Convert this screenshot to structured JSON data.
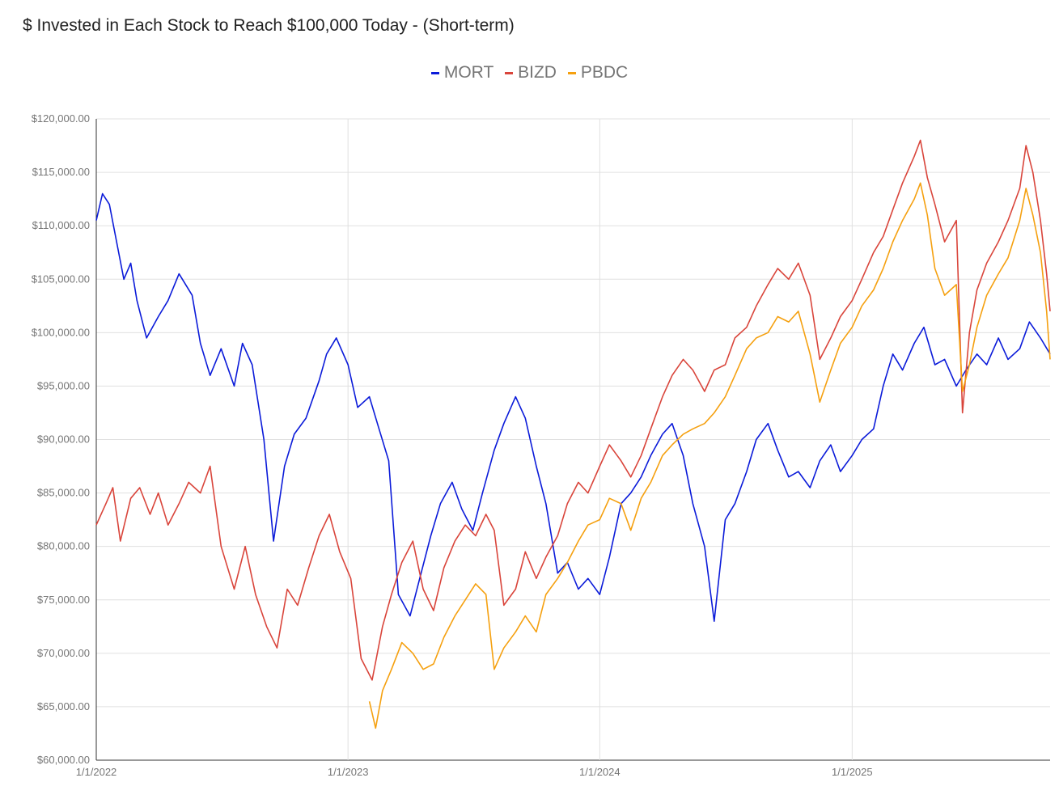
{
  "chart_data": {
    "type": "line",
    "title": "$ Invested in Each Stock to Reach $100,000 Today - (Short-term)",
    "xlabel": "",
    "ylabel": "",
    "ylim": [
      60000,
      120000
    ],
    "y_ticks": [
      "$60,000.00",
      "$65,000.00",
      "$70,000.00",
      "$75,000.00",
      "$80,000.00",
      "$85,000.00",
      "$90,000.00",
      "$95,000.00",
      "$100,000.00",
      "$105,000.00",
      "$110,000.00",
      "$115,000.00",
      "$120,000.00"
    ],
    "x_ticks": [
      "1/1/2022",
      "1/1/2023",
      "1/1/2024",
      "1/1/2025"
    ],
    "xlim": [
      "2022-01-01",
      "2025-10-15"
    ],
    "grid": true,
    "legend_position": "top-center",
    "series": [
      {
        "name": "MORT",
        "color": "#0b1bd9",
        "points": [
          [
            "2022-01-01",
            110500
          ],
          [
            "2022-01-10",
            113000
          ],
          [
            "2022-01-20",
            112000
          ],
          [
            "2022-02-01",
            108000
          ],
          [
            "2022-02-10",
            105000
          ],
          [
            "2022-02-20",
            106500
          ],
          [
            "2022-03-01",
            103000
          ],
          [
            "2022-03-15",
            99500
          ],
          [
            "2022-04-01",
            101500
          ],
          [
            "2022-04-15",
            103000
          ],
          [
            "2022-05-01",
            105500
          ],
          [
            "2022-05-20",
            103500
          ],
          [
            "2022-06-01",
            99000
          ],
          [
            "2022-06-15",
            96000
          ],
          [
            "2022-07-01",
            98500
          ],
          [
            "2022-07-20",
            95000
          ],
          [
            "2022-08-01",
            99000
          ],
          [
            "2022-08-15",
            97000
          ],
          [
            "2022-09-01",
            90000
          ],
          [
            "2022-09-15",
            80500
          ],
          [
            "2022-10-01",
            87500
          ],
          [
            "2022-10-15",
            90500
          ],
          [
            "2022-11-01",
            92000
          ],
          [
            "2022-11-20",
            95500
          ],
          [
            "2022-12-01",
            98000
          ],
          [
            "2022-12-15",
            99500
          ],
          [
            "2023-01-01",
            97000
          ],
          [
            "2023-01-15",
            93000
          ],
          [
            "2023-02-01",
            94000
          ],
          [
            "2023-02-15",
            91000
          ],
          [
            "2023-03-01",
            88000
          ],
          [
            "2023-03-15",
            75500
          ],
          [
            "2023-04-01",
            73500
          ],
          [
            "2023-04-15",
            77000
          ],
          [
            "2023-05-01",
            81000
          ],
          [
            "2023-05-15",
            84000
          ],
          [
            "2023-06-01",
            86000
          ],
          [
            "2023-06-15",
            83500
          ],
          [
            "2023-07-01",
            81500
          ],
          [
            "2023-07-15",
            85000
          ],
          [
            "2023-08-01",
            89000
          ],
          [
            "2023-08-15",
            91500
          ],
          [
            "2023-09-01",
            94000
          ],
          [
            "2023-09-15",
            92000
          ],
          [
            "2023-10-01",
            87500
          ],
          [
            "2023-10-15",
            84000
          ],
          [
            "2023-11-01",
            77500
          ],
          [
            "2023-11-15",
            78500
          ],
          [
            "2023-12-01",
            76000
          ],
          [
            "2023-12-15",
            77000
          ],
          [
            "2024-01-01",
            75500
          ],
          [
            "2024-01-15",
            79000
          ],
          [
            "2024-02-01",
            84000
          ],
          [
            "2024-02-15",
            85000
          ],
          [
            "2024-03-01",
            86500
          ],
          [
            "2024-03-15",
            88500
          ],
          [
            "2024-04-01",
            90500
          ],
          [
            "2024-04-15",
            91500
          ],
          [
            "2024-05-01",
            88500
          ],
          [
            "2024-05-15",
            84000
          ],
          [
            "2024-06-01",
            80000
          ],
          [
            "2024-06-15",
            73000
          ],
          [
            "2024-07-01",
            82500
          ],
          [
            "2024-07-15",
            84000
          ],
          [
            "2024-08-01",
            87000
          ],
          [
            "2024-08-15",
            90000
          ],
          [
            "2024-09-01",
            91500
          ],
          [
            "2024-09-15",
            89000
          ],
          [
            "2024-10-01",
            86500
          ],
          [
            "2024-10-15",
            87000
          ],
          [
            "2024-11-01",
            85500
          ],
          [
            "2024-11-15",
            88000
          ],
          [
            "2024-12-01",
            89500
          ],
          [
            "2024-12-15",
            87000
          ],
          [
            "2025-01-01",
            88500
          ],
          [
            "2025-01-15",
            90000
          ],
          [
            "2025-02-01",
            91000
          ],
          [
            "2025-02-15",
            95000
          ],
          [
            "2025-03-01",
            98000
          ],
          [
            "2025-03-15",
            96500
          ],
          [
            "2025-04-01",
            99000
          ],
          [
            "2025-04-15",
            100500
          ],
          [
            "2025-05-01",
            97000
          ],
          [
            "2025-05-15",
            97500
          ],
          [
            "2025-06-01",
            95000
          ],
          [
            "2025-06-15",
            96500
          ],
          [
            "2025-07-01",
            98000
          ],
          [
            "2025-07-15",
            97000
          ],
          [
            "2025-08-01",
            99500
          ],
          [
            "2025-08-15",
            97500
          ],
          [
            "2025-09-01",
            98500
          ],
          [
            "2025-09-15",
            101000
          ],
          [
            "2025-10-01",
            99500
          ],
          [
            "2025-10-15",
            98000
          ]
        ]
      },
      {
        "name": "BIZD",
        "color": "#d9453b",
        "points": [
          [
            "2022-01-01",
            82000
          ],
          [
            "2022-01-15",
            84000
          ],
          [
            "2022-01-25",
            85500
          ],
          [
            "2022-02-05",
            80500
          ],
          [
            "2022-02-20",
            84500
          ],
          [
            "2022-03-05",
            85500
          ],
          [
            "2022-03-20",
            83000
          ],
          [
            "2022-04-01",
            85000
          ],
          [
            "2022-04-15",
            82000
          ],
          [
            "2022-05-01",
            84000
          ],
          [
            "2022-05-15",
            86000
          ],
          [
            "2022-06-01",
            85000
          ],
          [
            "2022-06-15",
            87500
          ],
          [
            "2022-07-01",
            80000
          ],
          [
            "2022-07-20",
            76000
          ],
          [
            "2022-08-05",
            80000
          ],
          [
            "2022-08-20",
            75500
          ],
          [
            "2022-09-05",
            72500
          ],
          [
            "2022-09-20",
            70500
          ],
          [
            "2022-10-05",
            76000
          ],
          [
            "2022-10-20",
            74500
          ],
          [
            "2022-11-05",
            78000
          ],
          [
            "2022-11-20",
            81000
          ],
          [
            "2022-12-05",
            83000
          ],
          [
            "2022-12-20",
            79500
          ],
          [
            "2023-01-05",
            77000
          ],
          [
            "2023-01-20",
            69500
          ],
          [
            "2023-02-05",
            67500
          ],
          [
            "2023-02-20",
            72500
          ],
          [
            "2023-03-05",
            75500
          ],
          [
            "2023-03-20",
            78500
          ],
          [
            "2023-04-05",
            80500
          ],
          [
            "2023-04-20",
            76000
          ],
          [
            "2023-05-05",
            74000
          ],
          [
            "2023-05-20",
            78000
          ],
          [
            "2023-06-05",
            80500
          ],
          [
            "2023-06-20",
            82000
          ],
          [
            "2023-07-05",
            81000
          ],
          [
            "2023-07-20",
            83000
          ],
          [
            "2023-08-01",
            81500
          ],
          [
            "2023-08-15",
            74500
          ],
          [
            "2023-09-01",
            76000
          ],
          [
            "2023-09-15",
            79500
          ],
          [
            "2023-10-01",
            77000
          ],
          [
            "2023-10-15",
            79000
          ],
          [
            "2023-11-01",
            81000
          ],
          [
            "2023-11-15",
            84000
          ],
          [
            "2023-12-01",
            86000
          ],
          [
            "2023-12-15",
            85000
          ],
          [
            "2024-01-01",
            87500
          ],
          [
            "2024-01-15",
            89500
          ],
          [
            "2024-02-01",
            88000
          ],
          [
            "2024-02-15",
            86500
          ],
          [
            "2024-03-01",
            88500
          ],
          [
            "2024-03-15",
            91000
          ],
          [
            "2024-04-01",
            94000
          ],
          [
            "2024-04-15",
            96000
          ],
          [
            "2024-05-01",
            97500
          ],
          [
            "2024-05-15",
            96500
          ],
          [
            "2024-06-01",
            94500
          ],
          [
            "2024-06-15",
            96500
          ],
          [
            "2024-07-01",
            97000
          ],
          [
            "2024-07-15",
            99500
          ],
          [
            "2024-08-01",
            100500
          ],
          [
            "2024-08-15",
            102500
          ],
          [
            "2024-09-01",
            104500
          ],
          [
            "2024-09-15",
            106000
          ],
          [
            "2024-10-01",
            105000
          ],
          [
            "2024-10-15",
            106500
          ],
          [
            "2024-11-01",
            103500
          ],
          [
            "2024-11-15",
            97500
          ],
          [
            "2024-12-01",
            99500
          ],
          [
            "2024-12-15",
            101500
          ],
          [
            "2025-01-01",
            103000
          ],
          [
            "2025-01-15",
            105000
          ],
          [
            "2025-02-01",
            107500
          ],
          [
            "2025-02-15",
            109000
          ],
          [
            "2025-03-01",
            111500
          ],
          [
            "2025-03-15",
            114000
          ],
          [
            "2025-04-01",
            116500
          ],
          [
            "2025-04-10",
            118000
          ],
          [
            "2025-04-20",
            114500
          ],
          [
            "2025-05-01",
            112000
          ],
          [
            "2025-05-15",
            108500
          ],
          [
            "2025-06-01",
            110500
          ],
          [
            "2025-06-10",
            92500
          ],
          [
            "2025-06-20",
            100000
          ],
          [
            "2025-07-01",
            104000
          ],
          [
            "2025-07-15",
            106500
          ],
          [
            "2025-08-01",
            108500
          ],
          [
            "2025-08-15",
            110500
          ],
          [
            "2025-09-01",
            113500
          ],
          [
            "2025-09-10",
            117500
          ],
          [
            "2025-09-20",
            115000
          ],
          [
            "2025-10-01",
            110500
          ],
          [
            "2025-10-10",
            105500
          ],
          [
            "2025-10-15",
            102000
          ]
        ]
      },
      {
        "name": "PBDC",
        "color": "#f5a00f",
        "points": [
          [
            "2023-02-01",
            65500
          ],
          [
            "2023-02-10",
            63000
          ],
          [
            "2023-02-20",
            66500
          ],
          [
            "2023-03-05",
            68500
          ],
          [
            "2023-03-20",
            71000
          ],
          [
            "2023-04-05",
            70000
          ],
          [
            "2023-04-20",
            68500
          ],
          [
            "2023-05-05",
            69000
          ],
          [
            "2023-05-20",
            71500
          ],
          [
            "2023-06-05",
            73500
          ],
          [
            "2023-06-20",
            75000
          ],
          [
            "2023-07-05",
            76500
          ],
          [
            "2023-07-20",
            75500
          ],
          [
            "2023-08-01",
            68500
          ],
          [
            "2023-08-15",
            70500
          ],
          [
            "2023-09-01",
            72000
          ],
          [
            "2023-09-15",
            73500
          ],
          [
            "2023-10-01",
            72000
          ],
          [
            "2023-10-15",
            75500
          ],
          [
            "2023-11-01",
            77000
          ],
          [
            "2023-11-15",
            78500
          ],
          [
            "2023-12-01",
            80500
          ],
          [
            "2023-12-15",
            82000
          ],
          [
            "2024-01-01",
            82500
          ],
          [
            "2024-01-15",
            84500
          ],
          [
            "2024-02-01",
            84000
          ],
          [
            "2024-02-15",
            81500
          ],
          [
            "2024-03-01",
            84500
          ],
          [
            "2024-03-15",
            86000
          ],
          [
            "2024-04-01",
            88500
          ],
          [
            "2024-04-15",
            89500
          ],
          [
            "2024-05-01",
            90500
          ],
          [
            "2024-05-15",
            91000
          ],
          [
            "2024-06-01",
            91500
          ],
          [
            "2024-06-15",
            92500
          ],
          [
            "2024-07-01",
            94000
          ],
          [
            "2024-07-15",
            96000
          ],
          [
            "2024-08-01",
            98500
          ],
          [
            "2024-08-15",
            99500
          ],
          [
            "2024-09-01",
            100000
          ],
          [
            "2024-09-15",
            101500
          ],
          [
            "2024-10-01",
            101000
          ],
          [
            "2024-10-15",
            102000
          ],
          [
            "2024-11-01",
            98000
          ],
          [
            "2024-11-15",
            93500
          ],
          [
            "2024-12-01",
            96500
          ],
          [
            "2024-12-15",
            99000
          ],
          [
            "2025-01-01",
            100500
          ],
          [
            "2025-01-15",
            102500
          ],
          [
            "2025-02-01",
            104000
          ],
          [
            "2025-02-15",
            106000
          ],
          [
            "2025-03-01",
            108500
          ],
          [
            "2025-03-15",
            110500
          ],
          [
            "2025-04-01",
            112500
          ],
          [
            "2025-04-10",
            114000
          ],
          [
            "2025-04-20",
            111000
          ],
          [
            "2025-05-01",
            106000
          ],
          [
            "2025-05-15",
            103500
          ],
          [
            "2025-06-01",
            104500
          ],
          [
            "2025-06-10",
            94500
          ],
          [
            "2025-06-20",
            97000
          ],
          [
            "2025-07-01",
            100500
          ],
          [
            "2025-07-15",
            103500
          ],
          [
            "2025-08-01",
            105500
          ],
          [
            "2025-08-15",
            107000
          ],
          [
            "2025-09-01",
            110500
          ],
          [
            "2025-09-10",
            113500
          ],
          [
            "2025-09-20",
            111000
          ],
          [
            "2025-10-01",
            107500
          ],
          [
            "2025-10-10",
            102000
          ],
          [
            "2025-10-15",
            97500
          ]
        ]
      }
    ]
  }
}
